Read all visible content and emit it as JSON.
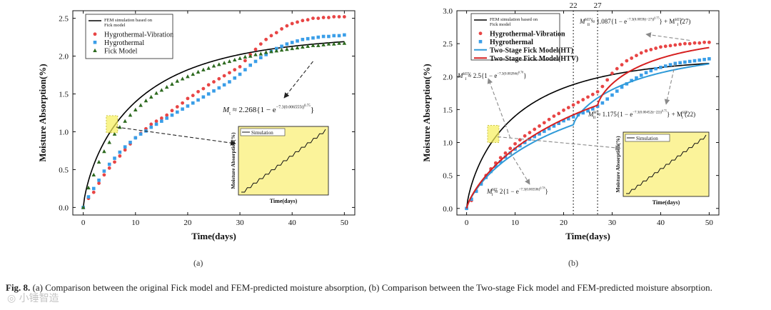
{
  "caption": {
    "label": "Fig. 8.",
    "text": "(a) Comparison between the original Fick model and FEM-predicted moisture absorption, (b) Comparison between the Two-stage Fick model and FEM-predicted moisture absorption."
  },
  "watermark": "◎ 小锤智造",
  "chart_data": [
    {
      "id": "a",
      "type": "scatter",
      "panel_label": "(a)",
      "xlabel": "Time(days)",
      "ylabel": "Moisture Absorption(%)",
      "xlim": [
        -2,
        52
      ],
      "ylim": [
        -0.1,
        2.6
      ],
      "xticks": [
        0,
        10,
        20,
        30,
        40,
        50
      ],
      "yticks": [
        0.0,
        0.5,
        1.0,
        1.5,
        2.0,
        2.5
      ],
      "ytick_labels": [
        "0.0",
        "0.5",
        "1.0",
        "1.5",
        "2.0",
        "2.5"
      ],
      "legend": [
        {
          "label": "FEM simulation based on Fick model",
          "kind": "line",
          "color": "#000000"
        },
        {
          "label": "Hygrothermal-Vibration",
          "kind": "circle",
          "color": "#e84545"
        },
        {
          "label": "Hygrothermal",
          "kind": "square",
          "color": "#3a9ee8"
        },
        {
          "label": "Fick Model",
          "kind": "triangle",
          "color": "#2d6a1f"
        }
      ],
      "series": [
        {
          "name": "FEM simulation based on Fick model",
          "kind": "line",
          "color": "#000000",
          "model": {
            "A": 2.29,
            "k": 0.0065,
            "p": 0.75
          }
        },
        {
          "name": "Hygrothermal-Vibration",
          "kind": "circle",
          "color": "#e84545",
          "x": [
            0,
            1,
            2,
            3,
            4,
            5,
            6,
            7,
            8,
            9,
            10,
            11,
            12,
            13,
            14,
            15,
            16,
            17,
            18,
            19,
            20,
            21,
            22,
            23,
            24,
            25,
            26,
            27,
            28,
            29,
            30,
            31,
            32,
            33,
            34,
            35,
            36,
            37,
            38,
            39,
            40,
            41,
            42,
            43,
            44,
            45,
            46,
            47,
            48,
            49,
            50
          ],
          "y": [
            0,
            0.12,
            0.2,
            0.32,
            0.43,
            0.52,
            0.6,
            0.68,
            0.76,
            0.84,
            0.92,
            0.98,
            1.04,
            1.1,
            1.14,
            1.18,
            1.22,
            1.28,
            1.33,
            1.38,
            1.44,
            1.48,
            1.53,
            1.57,
            1.62,
            1.66,
            1.7,
            1.74,
            1.78,
            1.82,
            1.86,
            1.94,
            2.02,
            2.09,
            2.16,
            2.22,
            2.27,
            2.31,
            2.36,
            2.4,
            2.43,
            2.45,
            2.47,
            2.48,
            2.5,
            2.5,
            2.51,
            2.51,
            2.52,
            2.52,
            2.52
          ]
        },
        {
          "name": "Hygrothermal",
          "kind": "square",
          "color": "#3a9ee8",
          "x": [
            0,
            1,
            2,
            3,
            4,
            5,
            6,
            7,
            8,
            9,
            10,
            11,
            12,
            13,
            14,
            15,
            16,
            17,
            18,
            19,
            20,
            21,
            22,
            23,
            24,
            25,
            26,
            27,
            28,
            29,
            30,
            31,
            32,
            33,
            34,
            35,
            36,
            37,
            38,
            39,
            40,
            41,
            42,
            43,
            44,
            45,
            46,
            47,
            48,
            49,
            50
          ],
          "y": [
            0,
            0.14,
            0.25,
            0.36,
            0.48,
            0.57,
            0.65,
            0.73,
            0.8,
            0.86,
            0.92,
            0.97,
            1.01,
            1.06,
            1.1,
            1.14,
            1.18,
            1.22,
            1.26,
            1.3,
            1.34,
            1.38,
            1.42,
            1.46,
            1.5,
            1.54,
            1.58,
            1.62,
            1.66,
            1.71,
            1.76,
            1.82,
            1.88,
            1.93,
            1.98,
            2.02,
            2.06,
            2.1,
            2.13,
            2.16,
            2.18,
            2.2,
            2.22,
            2.23,
            2.24,
            2.25,
            2.26,
            2.26,
            2.27,
            2.27,
            2.28
          ]
        },
        {
          "name": "Fick Model",
          "kind": "triangle",
          "color": "#2d6a1f",
          "x": [
            0,
            1,
            2,
            3,
            4,
            5,
            6,
            7,
            8,
            9,
            10,
            11,
            12,
            13,
            14,
            15,
            16,
            17,
            18,
            19,
            20,
            21,
            22,
            23,
            24,
            25,
            26,
            27,
            28,
            29,
            30,
            31,
            32,
            33,
            34,
            35,
            36,
            37,
            38,
            39,
            40,
            41,
            42,
            43,
            44,
            45,
            46,
            47,
            48,
            49,
            50
          ],
          "y": [
            0,
            0.26,
            0.43,
            0.6,
            0.74,
            0.86,
            0.97,
            1.06,
            1.14,
            1.22,
            1.29,
            1.35,
            1.41,
            1.46,
            1.51,
            1.55,
            1.59,
            1.63,
            1.67,
            1.7,
            1.73,
            1.76,
            1.79,
            1.82,
            1.84,
            1.87,
            1.89,
            1.91,
            1.93,
            1.95,
            1.97,
            1.99,
            2.0,
            2.02,
            2.03,
            2.05,
            2.06,
            2.07,
            2.08,
            2.09,
            2.1,
            2.11,
            2.12,
            2.13,
            2.14,
            2.14,
            2.15,
            2.16,
            2.16,
            2.17,
            2.17
          ]
        }
      ],
      "annotations": {
        "equation": "M_t ≈ 2.268{1 − e^(−7.3(0.006555t)^0.75)}",
        "eq_M": "M",
        "eq_sub": "t",
        "eq_rest": " ≈ 2.268",
        "eq_brace": "{1 − e",
        "eq_exp": "−7.3(0.006555t)",
        "eq_exp2": "0.75",
        "eq_close": "}",
        "inset_legend": "Simulation",
        "inset_xlabel": "Time(days)",
        "inset_ylabel": "Moisture Absorption(%)",
        "inset_background": "#fbf39a",
        "highlight_at": {
          "x": 5.5,
          "y": 1.1
        }
      }
    },
    {
      "id": "b",
      "type": "scatter",
      "panel_label": "(b)",
      "xlabel": "Time(days)",
      "ylabel": "Moisture Absorption(%)",
      "xlim": [
        -2,
        52
      ],
      "ylim": [
        -0.1,
        3.0
      ],
      "xticks": [
        0,
        10,
        20,
        30,
        40,
        50
      ],
      "yticks": [
        0.0,
        0.5,
        1.0,
        1.5,
        2.0,
        2.5,
        3.0
      ],
      "ytick_labels": [
        "0.0",
        "0.5",
        "1.0",
        "1.5",
        "2.0",
        "2.5",
        "3.0"
      ],
      "vlines": [
        {
          "x": 22,
          "label": "22"
        },
        {
          "x": 27,
          "label": "27"
        }
      ],
      "legend": [
        {
          "label": "FEM simulation based on Fick model",
          "kind": "line",
          "color": "#000000"
        },
        {
          "label": "Hygrothermal-Vibration",
          "kind": "circle",
          "color": "#e84545"
        },
        {
          "label": "Hygrothermal",
          "kind": "square",
          "color": "#3a9ee8"
        },
        {
          "label": "Two-Stage Fick Model(HT)",
          "kind": "line",
          "color": "#2f9ad8"
        },
        {
          "label": "Two-Stage Fick Model(HTV)",
          "kind": "line",
          "color": "#d62020"
        }
      ],
      "series": [
        {
          "name": "FEM simulation based on Fick model",
          "kind": "line",
          "color": "#000000",
          "model": {
            "A": 2.3,
            "k": 0.0065,
            "p": 0.75
          }
        },
        {
          "name": "Hygrothermal-Vibration",
          "kind": "circle",
          "color": "#e84545",
          "x": [
            0,
            1,
            2,
            3,
            4,
            5,
            6,
            7,
            8,
            9,
            10,
            11,
            12,
            13,
            14,
            15,
            16,
            17,
            18,
            19,
            20,
            21,
            22,
            23,
            24,
            25,
            26,
            27,
            28,
            29,
            30,
            31,
            32,
            33,
            34,
            35,
            36,
            37,
            38,
            39,
            40,
            41,
            42,
            43,
            44,
            45,
            46,
            47,
            48,
            49,
            50
          ],
          "y": [
            0,
            0.12,
            0.26,
            0.38,
            0.5,
            0.6,
            0.69,
            0.77,
            0.84,
            0.91,
            0.98,
            1.04,
            1.1,
            1.15,
            1.2,
            1.25,
            1.3,
            1.35,
            1.4,
            1.44,
            1.49,
            1.53,
            1.57,
            1.61,
            1.65,
            1.69,
            1.73,
            1.77,
            1.85,
            1.95,
            2.05,
            2.12,
            2.18,
            2.24,
            2.28,
            2.32,
            2.36,
            2.39,
            2.41,
            2.43,
            2.45,
            2.46,
            2.47,
            2.48,
            2.49,
            2.5,
            2.5,
            2.51,
            2.51,
            2.52,
            2.52
          ]
        },
        {
          "name": "Hygrothermal",
          "kind": "square",
          "color": "#3a9ee8",
          "x": [
            0,
            1,
            2,
            3,
            4,
            5,
            6,
            7,
            8,
            9,
            10,
            11,
            12,
            13,
            14,
            15,
            16,
            17,
            18,
            19,
            20,
            21,
            22,
            23,
            24,
            25,
            26,
            27,
            28,
            29,
            30,
            31,
            32,
            33,
            34,
            35,
            36,
            37,
            38,
            39,
            40,
            41,
            42,
            43,
            44,
            45,
            46,
            47,
            48,
            49,
            50
          ],
          "y": [
            0,
            0.14,
            0.26,
            0.37,
            0.47,
            0.56,
            0.64,
            0.71,
            0.78,
            0.84,
            0.9,
            0.95,
            1.0,
            1.05,
            1.09,
            1.13,
            1.17,
            1.21,
            1.25,
            1.29,
            1.33,
            1.36,
            1.39,
            1.42,
            1.45,
            1.48,
            1.51,
            1.55,
            1.6,
            1.66,
            1.72,
            1.78,
            1.84,
            1.89,
            1.94,
            1.98,
            2.02,
            2.06,
            2.09,
            2.12,
            2.14,
            2.16,
            2.18,
            2.2,
            2.21,
            2.22,
            2.23,
            2.24,
            2.25,
            2.26,
            2.27
          ]
        },
        {
          "name": "Two-Stage Fick Model(HT)",
          "kind": "line",
          "color": "#2f9ad8",
          "model": {
            "stage1": {
              "A": 2.0,
              "k": 0.00358,
              "p": 0.78
            },
            "t0": 22,
            "stage2": {
              "A": 1.175,
              "k": 0.00452,
              "p": 0.75
            }
          }
        },
        {
          "name": "Two-Stage Fick Model(HTV)",
          "kind": "line",
          "color": "#d62020",
          "model": {
            "stage1": {
              "A": 2.5,
              "k": 0.00284,
              "p": 0.78
            },
            "t0": 27,
            "stage2": {
              "A": 1.087,
              "k": 0.0059,
              "p": 0.75
            }
          }
        }
      ],
      "annotations": {
        "eq_htv2": {
          "M": "M",
          "sup": "HTV",
          "sub": "II",
          "rest": " ≈ 1.087",
          "brace": "{1 − e",
          "exp": "−7.3(0.0059(t−27))",
          "exp2": "0.75",
          "tail": "} + M",
          "tsup": "HTV",
          "tsub": "I",
          "tcl": " (27)"
        },
        "eq_htv1": {
          "M": "M",
          "sup": "HTV",
          "sub": "I",
          "rest": " ≈ 2.5",
          "brace": "{1 − e",
          "exp": "−7.3(0.00284t)",
          "exp2": "0.78",
          "tail": "}",
          "tsup": "",
          "tsub": "",
          "tcl": ""
        },
        "eq_ht2": {
          "M": "M",
          "sup": "HT",
          "sub": "II",
          "rest": " ≈ 1.175",
          "brace": "{1 − e",
          "exp": "−7.3(0.00452(t−22))",
          "exp2": "0.75",
          "tail": "} + M",
          "tsup": "HT",
          "tsub": "I",
          "tcl": " (22)"
        },
        "eq_ht1": {
          "M": "M",
          "sup": "HT",
          "sub": "I",
          "rest": " ≈ 2",
          "brace": "{1 − e",
          "exp": "−7.3(0.00358t)",
          "exp2": "0.78",
          "tail": "}",
          "tsup": "",
          "tsub": "",
          "tcl": ""
        },
        "inset_legend": "Simulation",
        "inset_xlabel": "Time(days)",
        "inset_ylabel": "Moisture Absorption(%)",
        "inset_background": "#fbf39a",
        "highlight_at": {
          "x": 5.5,
          "y": 1.13
        }
      }
    }
  ]
}
